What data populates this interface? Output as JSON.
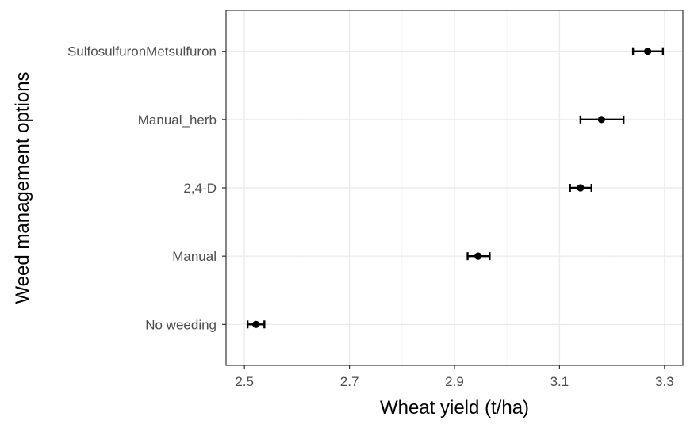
{
  "chart_data": {
    "type": "scatter",
    "xlabel": "Wheat yield (t/ha)",
    "ylabel": "Weed management options",
    "xlim": [
      2.465,
      3.335
    ],
    "xticks": [
      "2.5",
      "2.7",
      "2.9",
      "3.1",
      "3.3"
    ],
    "xtick_values": [
      2.5,
      2.7,
      2.9,
      3.1,
      3.3
    ],
    "categories": [
      "No weeding",
      "Manual",
      "2,4-D",
      "Manual_herb",
      "SulfosulfuronMetsulfuron"
    ],
    "values": [
      2.522,
      2.945,
      3.14,
      3.18,
      3.268
    ],
    "error_low": [
      2.506,
      2.925,
      3.12,
      3.14,
      3.24
    ],
    "error_high": [
      2.538,
      2.967,
      3.161,
      3.222,
      3.297
    ],
    "grid": true,
    "legend": "none",
    "colors": {
      "point": "#000000",
      "grid_major": "#ebebeb",
      "grid_minor": "#f5f5f5",
      "panel_border": "#333333"
    }
  }
}
